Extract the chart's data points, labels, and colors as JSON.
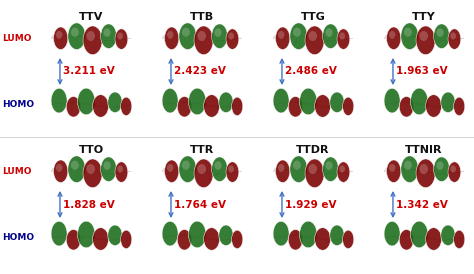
{
  "background_color": "#f5f5f5",
  "fig_bg": "#ffffff",
  "top_row": {
    "molecules": [
      "TTV",
      "TTB",
      "TTG",
      "TTY"
    ],
    "energies": [
      "3.211 eV",
      "2.423 eV",
      "2.486 eV",
      "1.963 eV"
    ]
  },
  "bottom_row": {
    "molecules": [
      "TTO",
      "TTR",
      "TTDR",
      "TTNIR"
    ],
    "energies": [
      "1.828 eV",
      "1.764 eV",
      "1.929 eV",
      "1.342 eV"
    ]
  },
  "lumo_label": "LUMO",
  "homo_label": "HOMO",
  "lumo_color": "#cc0000",
  "homo_color": "#00008b",
  "title_color": "#111111",
  "energy_color": "#cc0000",
  "arrow_color": "#4472c4",
  "mol_title_fontsize": 8.0,
  "label_fontsize": 6.5,
  "energy_fontsize": 7.5,
  "blob_dark_red": "#7a0000",
  "blob_green": "#1a6b1a",
  "blob_light_green": "#3cb371",
  "blob_edge": "#ffffff"
}
